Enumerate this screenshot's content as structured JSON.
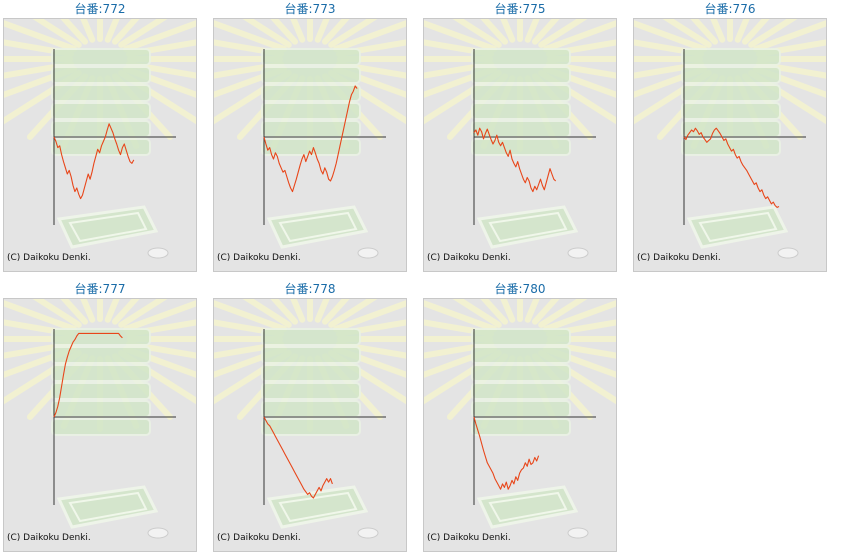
{
  "colors": {
    "title": "#1a6ca8",
    "line": "#e8461a",
    "background": "#e4e4e4",
    "axis": "#333333"
  },
  "chart_data": [
    {
      "type": "line",
      "title_prefix": "台番:",
      "title": "台番:772",
      "machine_number": "772",
      "copyright": "(C) Daikoku Denki.",
      "values": [
        0,
        -5,
        -12,
        -10,
        -20,
        -28,
        -35,
        -42,
        -38,
        -45,
        -55,
        -62,
        -58,
        -65,
        -70,
        -66,
        -58,
        -50,
        -42,
        -48,
        -40,
        -30,
        -22,
        -14,
        -18,
        -10,
        -5,
        0,
        8,
        15,
        10,
        5,
        -2,
        -8,
        -15,
        -20,
        -12,
        -8,
        -15,
        -22,
        -28,
        -30,
        -26
      ]
    },
    {
      "type": "line",
      "title": "台番:773",
      "machine_number": "773",
      "copyright": "(C) Daikoku Denki.",
      "values": [
        0,
        -8,
        -15,
        -12,
        -20,
        -25,
        -18,
        -22,
        -30,
        -35,
        -40,
        -38,
        -45,
        -52,
        -58,
        -62,
        -55,
        -48,
        -40,
        -32,
        -25,
        -20,
        -28,
        -22,
        -16,
        -20,
        -12,
        -18,
        -25,
        -30,
        -38,
        -42,
        -35,
        -40,
        -48,
        -50,
        -45,
        -38,
        -30,
        -20,
        -10,
        0,
        10,
        20,
        30,
        40,
        48,
        52,
        58,
        55
      ]
    },
    {
      "type": "line",
      "title": "台番:775",
      "machine_number": "775",
      "copyright": "(C) Daikoku Denki.",
      "values": [
        5,
        8,
        2,
        10,
        6,
        -2,
        4,
        9,
        3,
        -3,
        -8,
        -4,
        2,
        -6,
        -10,
        -6,
        -12,
        -18,
        -22,
        -15,
        -25,
        -30,
        -34,
        -28,
        -36,
        -42,
        -48,
        -52,
        -46,
        -50,
        -58,
        -62,
        -56,
        -60,
        -54,
        -48,
        -55,
        -60,
        -52,
        -44,
        -36,
        -42,
        -48,
        -50
      ]
    },
    {
      "type": "line",
      "title": "台番:776",
      "machine_number": "776",
      "copyright": "(C) Daikoku Denki.",
      "values": [
        0,
        -3,
        2,
        5,
        8,
        6,
        10,
        7,
        3,
        5,
        0,
        -3,
        -6,
        -4,
        -2,
        4,
        8,
        10,
        7,
        4,
        0,
        -4,
        -2,
        -8,
        -12,
        -16,
        -14,
        -20,
        -24,
        -22,
        -28,
        -32,
        -35,
        -38,
        -42,
        -46,
        -50,
        -54,
        -52,
        -58,
        -62,
        -60,
        -66,
        -70,
        -68,
        -72,
        -76,
        -74,
        -78,
        -80,
        -79
      ]
    },
    {
      "type": "line",
      "title": "台番:777",
      "machine_number": "777",
      "copyright": "(C) Daikoku Denki.",
      "values": [
        0,
        5,
        12,
        22,
        35,
        48,
        60,
        68,
        75,
        80,
        85,
        88,
        92,
        95,
        95,
        95,
        95,
        95,
        95,
        95,
        95,
        95,
        95,
        95,
        95,
        95,
        95,
        95,
        95,
        95,
        95,
        95,
        95,
        95,
        95,
        92,
        90
      ]
    },
    {
      "type": "line",
      "title": "台番:778",
      "machine_number": "778",
      "copyright": "(C) Daikoku Denki.",
      "values": [
        0,
        -4,
        -8,
        -10,
        -14,
        -18,
        -22,
        -26,
        -30,
        -34,
        -38,
        -42,
        -46,
        -50,
        -54,
        -58,
        -62,
        -66,
        -70,
        -74,
        -78,
        -82,
        -85,
        -88,
        -86,
        -90,
        -92,
        -88,
        -84,
        -80,
        -84,
        -78,
        -74,
        -70,
        -74,
        -70,
        -76
      ]
    },
    {
      "type": "line",
      "title": "台番:780",
      "machine_number": "780",
      "copyright": "(C) Daikoku Denki.",
      "values": [
        0,
        -8,
        -15,
        -22,
        -30,
        -38,
        -45,
        -52,
        -56,
        -60,
        -64,
        -70,
        -74,
        -78,
        -82,
        -76,
        -80,
        -74,
        -82,
        -78,
        -72,
        -76,
        -68,
        -72,
        -64,
        -60,
        -58,
        -52,
        -56,
        -48,
        -54,
        -52,
        -46,
        -50,
        -44
      ]
    }
  ]
}
